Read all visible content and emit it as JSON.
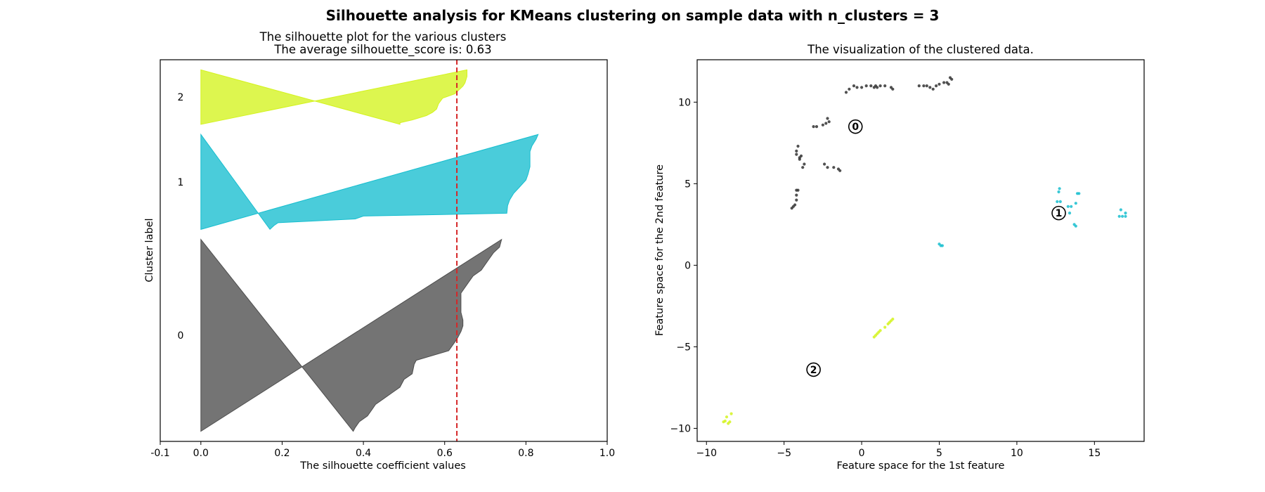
{
  "suptitle": "Silhouette analysis for KMeans clustering on sample data with n_clusters = 3",
  "chart_data": [
    {
      "type": "area",
      "title": "The silhouette plot for the various clusters",
      "subtitle": "The average silhouette_score is: 0.63",
      "xlabel": "The silhouette coefficient values",
      "ylabel": "Cluster label",
      "xlim": [
        -0.1,
        1.0
      ],
      "xticks": [
        "-0.1",
        "0.0",
        "0.2",
        "0.4",
        "0.6",
        "0.8",
        "1.0"
      ],
      "xtick_values": [
        -0.1,
        0.0,
        0.2,
        0.4,
        0.6,
        0.8,
        1.0
      ],
      "average_silhouette": 0.63,
      "average_line_color": "#d62728",
      "clusters": [
        {
          "label": "0",
          "color": "#4d4d4d",
          "count": 190,
          "profile": [
            [
              1.0,
              0.74
            ],
            [
              0.96,
              0.735
            ],
            [
              0.93,
              0.72
            ],
            [
              0.9,
              0.71
            ],
            [
              0.87,
              0.7
            ],
            [
              0.84,
              0.69
            ],
            [
              0.81,
              0.67
            ],
            [
              0.78,
              0.66
            ],
            [
              0.75,
              0.65
            ],
            [
              0.72,
              0.64
            ],
            [
              0.68,
              0.64
            ],
            [
              0.65,
              0.64
            ],
            [
              0.62,
              0.64
            ],
            [
              0.58,
              0.645
            ],
            [
              0.55,
              0.645
            ],
            [
              0.52,
              0.64
            ],
            [
              0.48,
              0.63
            ],
            [
              0.42,
              0.61
            ],
            [
              0.37,
              0.53
            ],
            [
              0.35,
              0.525
            ],
            [
              0.3,
              0.52
            ],
            [
              0.27,
              0.5
            ],
            [
              0.23,
              0.49
            ],
            [
              0.2,
              0.47
            ],
            [
              0.17,
              0.45
            ],
            [
              0.14,
              0.43
            ],
            [
              0.11,
              0.42
            ],
            [
              0.08,
              0.41
            ],
            [
              0.05,
              0.39
            ],
            [
              0.02,
              0.38
            ],
            [
              0.0,
              0.375
            ]
          ]
        },
        {
          "label": "1",
          "color": "#17becf",
          "count": 94,
          "profile": [
            [
              1.0,
              0.83
            ],
            [
              0.95,
              0.825
            ],
            [
              0.88,
              0.815
            ],
            [
              0.82,
              0.81
            ],
            [
              0.74,
              0.81
            ],
            [
              0.66,
              0.81
            ],
            [
              0.58,
              0.805
            ],
            [
              0.52,
              0.8
            ],
            [
              0.45,
              0.785
            ],
            [
              0.38,
              0.77
            ],
            [
              0.31,
              0.76
            ],
            [
              0.25,
              0.755
            ],
            [
              0.17,
              0.753
            ],
            [
              0.14,
              0.4
            ],
            [
              0.11,
              0.38
            ],
            [
              0.07,
              0.19
            ],
            [
              0.04,
              0.18
            ],
            [
              0.0,
              0.17
            ]
          ]
        },
        {
          "label": "2",
          "color": "#d4f31e",
          "count": 54,
          "profile": [
            [
              1.0,
              0.655
            ],
            [
              0.88,
              0.655
            ],
            [
              0.76,
              0.65
            ],
            [
              0.7,
              0.645
            ],
            [
              0.56,
              0.625
            ],
            [
              0.48,
              0.595
            ],
            [
              0.38,
              0.585
            ],
            [
              0.28,
              0.58
            ],
            [
              0.22,
              0.57
            ],
            [
              0.16,
              0.555
            ],
            [
              0.08,
              0.52
            ],
            [
              0.03,
              0.49
            ],
            [
              0.0,
              0.49
            ]
          ]
        }
      ],
      "grid": false
    },
    {
      "type": "scatter",
      "title": "The visualization of the clustered data.",
      "xlabel": "Feature space for the 1st feature",
      "ylabel": "Feature space for the 2nd feature",
      "xlim": [
        -10.6,
        18.2
      ],
      "ylim": [
        -10.8,
        12.6
      ],
      "xticks": [
        "−10",
        "−5",
        "0",
        "5",
        "10",
        "15"
      ],
      "xtick_values": [
        -10,
        -5,
        0,
        5,
        10,
        15
      ],
      "yticks": [
        "−10",
        "−5",
        "0",
        "5",
        "10"
      ],
      "ytick_values": [
        -10,
        -5,
        0,
        5,
        10
      ],
      "centers": [
        {
          "label": "0",
          "x": -0.4,
          "y": 8.5
        },
        {
          "label": "1",
          "x": 12.7,
          "y": 3.2
        },
        {
          "label": "2",
          "x": -3.1,
          "y": -6.4
        }
      ],
      "series": [
        {
          "color": "#333333",
          "points": [
            [
              -1.0,
              10.6
            ],
            [
              -0.8,
              10.8
            ],
            [
              -0.5,
              11.0
            ],
            [
              -0.3,
              10.9
            ],
            [
              0.0,
              10.9
            ],
            [
              0.3,
              11.0
            ],
            [
              0.6,
              11.0
            ],
            [
              0.8,
              10.9
            ],
            [
              0.9,
              11.0
            ],
            [
              1.0,
              10.9
            ],
            [
              1.2,
              11.0
            ],
            [
              1.5,
              11.0
            ],
            [
              1.9,
              10.9
            ],
            [
              2.0,
              10.8
            ],
            [
              3.7,
              11.0
            ],
            [
              4.0,
              11.0
            ],
            [
              4.2,
              11.0
            ],
            [
              4.4,
              10.9
            ],
            [
              4.6,
              10.8
            ],
            [
              4.8,
              11.0
            ],
            [
              5.0,
              11.1
            ],
            [
              5.3,
              11.2
            ],
            [
              5.5,
              11.2
            ],
            [
              5.6,
              11.1
            ],
            [
              5.7,
              11.5
            ],
            [
              5.8,
              11.4
            ],
            [
              -3.1,
              8.5
            ],
            [
              -2.9,
              8.5
            ],
            [
              -2.5,
              8.6
            ],
            [
              -2.3,
              8.7
            ],
            [
              -2.2,
              9.0
            ],
            [
              -2.1,
              8.8
            ],
            [
              -4.1,
              7.3
            ],
            [
              -4.2,
              7.0
            ],
            [
              -4.2,
              6.8
            ],
            [
              -4.0,
              6.6
            ],
            [
              -3.9,
              6.7
            ],
            [
              -4.0,
              6.5
            ],
            [
              -3.7,
              6.2
            ],
            [
              -3.8,
              6.0
            ],
            [
              -2.4,
              6.2
            ],
            [
              -2.2,
              6.0
            ],
            [
              -1.8,
              6.0
            ],
            [
              -1.5,
              5.9
            ],
            [
              -1.4,
              5.8
            ],
            [
              -4.2,
              4.6
            ],
            [
              -4.1,
              4.6
            ],
            [
              -4.2,
              4.3
            ],
            [
              -4.2,
              4.0
            ],
            [
              -4.4,
              3.6
            ],
            [
              -4.5,
              3.5
            ],
            [
              -4.3,
              3.7
            ]
          ]
        },
        {
          "color": "#17becf",
          "points": [
            [
              12.6,
              3.9
            ],
            [
              12.8,
              3.9
            ],
            [
              12.7,
              4.5
            ],
            [
              12.75,
              4.7
            ],
            [
              13.0,
              3.4
            ],
            [
              13.3,
              3.6
            ],
            [
              13.5,
              3.6
            ],
            [
              13.4,
              3.2
            ],
            [
              13.8,
              3.8
            ],
            [
              13.9,
              4.4
            ],
            [
              14.0,
              4.4
            ],
            [
              13.7,
              2.5
            ],
            [
              13.8,
              2.4
            ],
            [
              16.6,
              3.0
            ],
            [
              16.7,
              3.4
            ],
            [
              16.8,
              3.0
            ],
            [
              17.0,
              3.2
            ],
            [
              17.0,
              3.0
            ],
            [
              5.0,
              1.3
            ],
            [
              5.1,
              1.2
            ],
            [
              5.2,
              1.2
            ]
          ]
        },
        {
          "color": "#d4f31e",
          "points": [
            [
              0.8,
              -4.4
            ],
            [
              0.9,
              -4.3
            ],
            [
              1.0,
              -4.2
            ],
            [
              1.1,
              -4.1
            ],
            [
              1.2,
              -4.0
            ],
            [
              1.5,
              -3.8
            ],
            [
              1.7,
              -3.6
            ],
            [
              1.8,
              -3.5
            ],
            [
              2.0,
              -3.3
            ],
            [
              1.9,
              -3.4
            ],
            [
              -8.9,
              -9.6
            ],
            [
              -8.7,
              -9.3
            ],
            [
              -8.6,
              -9.7
            ],
            [
              -8.5,
              -9.6
            ],
            [
              -8.4,
              -9.1
            ],
            [
              -8.8,
              -9.55
            ]
          ]
        }
      ],
      "grid": false
    }
  ]
}
